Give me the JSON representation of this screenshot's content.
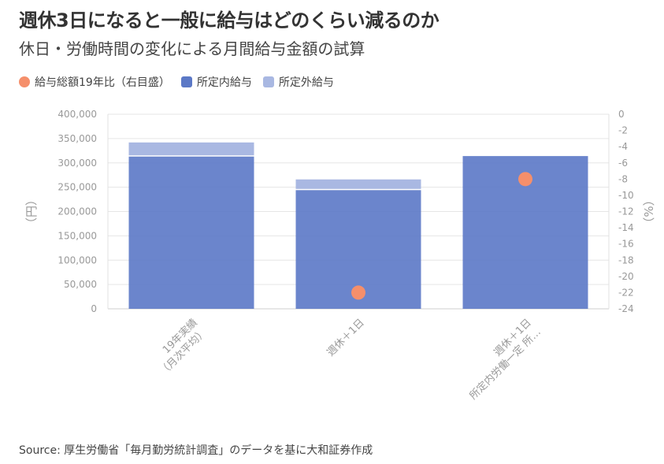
{
  "title": "週休3日になると一般に給与はどのくらい減るのか",
  "subtitle": "休日・労働時間の変化による月間給与金額の試算",
  "source": "Source: 厚生労働省「毎月勤労統計調査」のデータを基に大和証券作成",
  "colors": {
    "total_ratio": "#f58f6b",
    "scheduled": "#5b78c6",
    "non_scheduled": "#a9b8e2"
  },
  "chart_data": {
    "type": "bar",
    "stacked": true,
    "categories": [
      [
        "19年実績",
        "（月次平均）"
      ],
      [
        "週休＋1日"
      ],
      [
        "週休＋1日",
        "所定内労働一定 所…"
      ]
    ],
    "series": [
      {
        "name": "所定内給与",
        "axis": "left",
        "kind": "bar",
        "values": [
          313000,
          244000,
          314000
        ]
      },
      {
        "name": "所定外給与",
        "axis": "left",
        "kind": "bar",
        "values": [
          29000,
          22000,
          0
        ]
      },
      {
        "name": "給与総額19年比（右目盛）",
        "axis": "right",
        "kind": "scatter",
        "values": [
          null,
          -22,
          -8
        ]
      }
    ],
    "ylabel": "（円）",
    "y2label": "（%）",
    "ylim": [
      0,
      400000
    ],
    "y2lim": [
      -24,
      0
    ],
    "yticks": [
      "0",
      "50,000",
      "100,000",
      "150,000",
      "200,000",
      "250,000",
      "300,000",
      "350,000",
      "400,000"
    ],
    "y2ticks": [
      "0",
      "-2",
      "-4",
      "-6",
      "-8",
      "-10",
      "-12",
      "-14",
      "-16",
      "-18",
      "-20",
      "-22",
      "-24"
    ],
    "legend_position": "top-left",
    "grid": true
  }
}
